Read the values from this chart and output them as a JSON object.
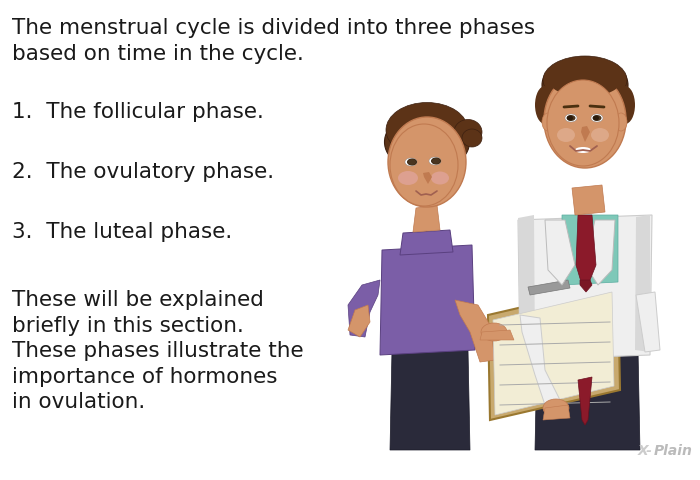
{
  "background_color": "#ffffff",
  "text_color": "#1a1a1a",
  "title_text": "The menstrual cycle is divided into three phases\nbased on time in the cycle.",
  "items": [
    "1.  The follicular phase.",
    "2.  The ovulatory phase.",
    "3.  The luteal phase."
  ],
  "footer_text": "These will be explained\nbriefly in this section.\nThese phases illustrate the\nimportance of hormones\nin ovulation.",
  "font_size_title": 15.5,
  "font_size_items": 15.5,
  "font_size_footer": 15.5,
  "watermark": "X-Plain",
  "watermark_color": "#bbbbbb",
  "watermark_fontsize": 10,
  "skin_light": "#D4956A",
  "skin_dark": "#C07A50",
  "hair_brown": "#5C3317",
  "purple": "#7B5EA7",
  "white_coat": "#EFEFEF",
  "coat_shadow": "#D8D8D8",
  "teal_shirt": "#7EC8B8",
  "dark_red_tie": "#8B1A2A",
  "clipboard_tan": "#C8A96E",
  "dark_pants": "#2A2A3A"
}
